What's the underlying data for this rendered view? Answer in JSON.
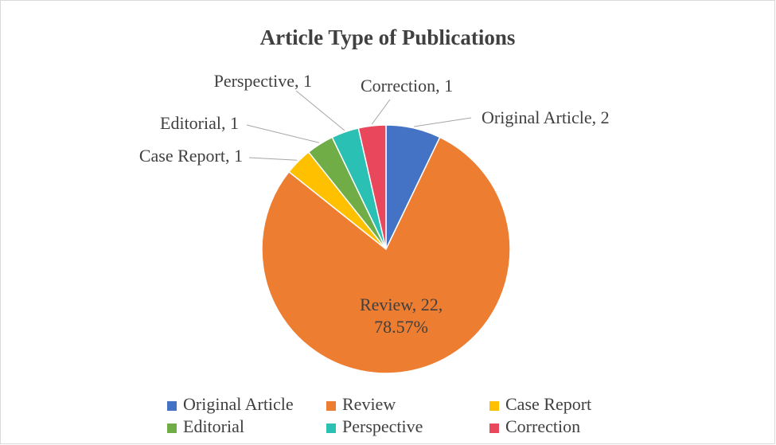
{
  "chart_data": {
    "type": "pie",
    "title": "Article Type of Publications",
    "categories": [
      "Original Article",
      "Review",
      "Case Report",
      "Editorial",
      "Perspective",
      "Correction"
    ],
    "values": [
      2,
      22,
      1,
      1,
      1,
      1
    ],
    "value_labels": [
      "Original Article, 2",
      "Review, 22, 78.57%",
      "Case Report, 1",
      "Editorial, 1",
      "Perspective, 1",
      "Correction, 1"
    ],
    "colors": [
      "#4472c4",
      "#ed7d31",
      "#ffc000",
      "#70ad47",
      "#2bc0b4",
      "#e8475c"
    ],
    "legend": "bottom"
  }
}
